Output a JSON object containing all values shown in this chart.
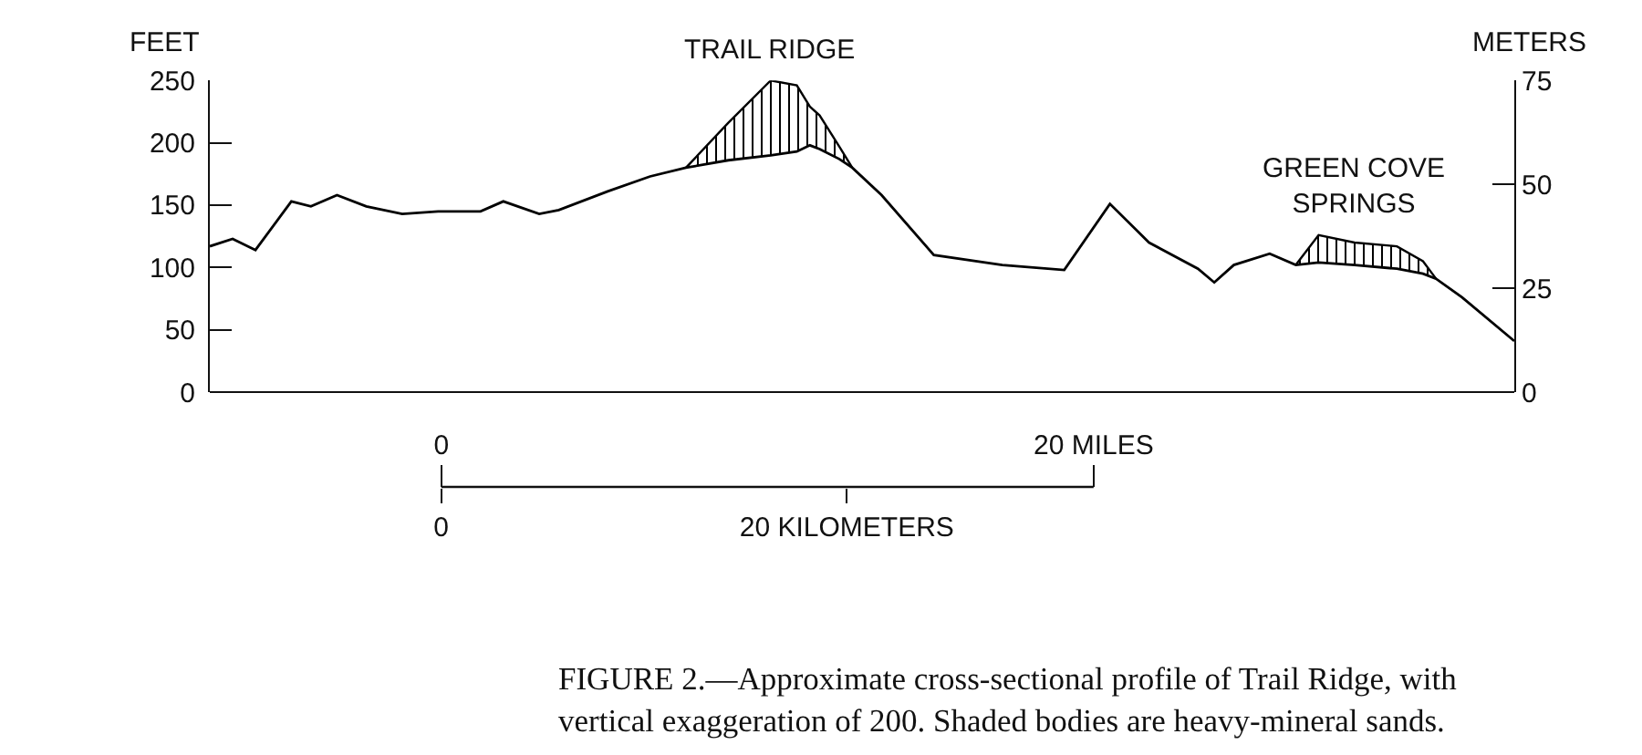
{
  "chart_data": {
    "type": "line",
    "ylabel": "FEET",
    "y2label": "METERS",
    "xlim": [
      -7.1,
      32.9
    ],
    "xticks": [
      0,
      {
        "value": 20,
        "label": "20 MILES"
      }
    ],
    "x2lim": [
      -11.4,
      52.9
    ],
    "x2ticks": [
      0,
      {
        "value": 20,
        "label": "20 KILOMETERS"
      }
    ],
    "ylim": [
      0,
      250
    ],
    "yticks": [
      0,
      50,
      100,
      150,
      200,
      250
    ],
    "y2lim": [
      0,
      75
    ],
    "y2ticks": [
      0,
      25,
      50,
      75
    ],
    "grid": false,
    "marker": "none",
    "line_style": "solid",
    "series": [
      {
        "color": "#000000",
        "x": [
          -7.1,
          -6.4,
          -5.7,
          -4.6,
          -4.0,
          -3.2,
          -2.3,
          -1.2,
          -0.1,
          1.2,
          1.9,
          3.0,
          3.6,
          5.1,
          6.4,
          7.5,
          8.8,
          10.1,
          10.9,
          11.3,
          11.6,
          12.2,
          12.6,
          13.5,
          15.1,
          17.2,
          19.1,
          20.5,
          21.7,
          23.2,
          23.7,
          24.3,
          25.4,
          26.2,
          26.9,
          28.0,
          29.3,
          30.1,
          30.5,
          31.3,
          32.9
        ],
        "values": [
          117,
          123,
          114,
          153,
          149,
          158,
          149,
          143,
          145,
          145,
          153,
          143,
          146,
          161,
          173,
          180,
          186,
          190,
          193,
          198,
          195,
          187,
          180,
          158,
          110,
          102,
          98,
          151,
          120,
          99,
          88,
          102,
          111,
          102,
          104,
          102,
          99,
          95,
          91,
          76,
          41
        ]
      },
      {
        "type": "area",
        "color": "#000000",
        "x": [
          7.5,
          8.8,
          10.1,
          10.9,
          11.3,
          11.6,
          12.2,
          12.6
        ],
        "values": [
          180,
          216,
          250,
          246,
          229,
          222,
          197,
          180
        ]
      },
      {
        "type": "area",
        "color": "#000000",
        "x": [
          26.2,
          26.9,
          28.0,
          29.3,
          30.1,
          30.5
        ],
        "values": [
          102,
          126,
          120,
          117,
          105,
          91
        ]
      }
    ],
    "annotations": [
      {
        "text": "TRAIL RIDGE",
        "x": 10.1,
        "y": 250
      },
      {
        "text": "GREEN COVE\nSPRINGS",
        "x": 28.0,
        "y": 126
      },
      "FIGURE 2.—Approximate cross-sectional profile of Trail Ridge, with\nvertical exaggeration of 200. Shaded bodies are heavy-mineral sands."
    ]
  }
}
